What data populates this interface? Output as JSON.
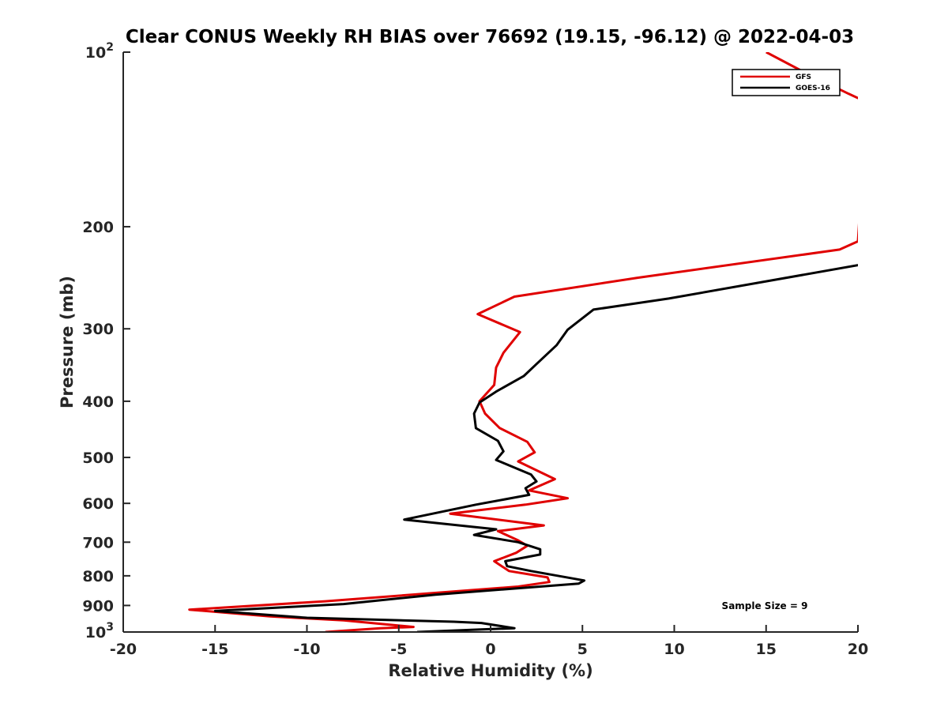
{
  "chart_data": {
    "type": "line",
    "title": "Clear CONUS Weekly RH BIAS over 76692 (19.15, -96.12) @ 2022-04-03",
    "xlabel": "Relative Humidity (%)",
    "ylabel": "Pressure (mb)",
    "xlim": [
      -20,
      20
    ],
    "ylim": [
      100,
      1000
    ],
    "yscale": "log",
    "yreversed": true,
    "x_ticks": [
      -20,
      -15,
      -10,
      -5,
      0,
      5,
      10,
      15,
      20
    ],
    "x_tick_labels": [
      "-20",
      "-15",
      "-10",
      "-5",
      "0",
      "5",
      "10",
      "15",
      "20"
    ],
    "y_ticks": [
      {
        "value": 100,
        "base": "10",
        "exp": "2"
      },
      {
        "value": 200,
        "label": "200"
      },
      {
        "value": 300,
        "label": "300"
      },
      {
        "value": 400,
        "label": "400"
      },
      {
        "value": 500,
        "label": "500"
      },
      {
        "value": 600,
        "label": "600"
      },
      {
        "value": 700,
        "label": "700"
      },
      {
        "value": 800,
        "label": "800"
      },
      {
        "value": 900,
        "label": "900"
      },
      {
        "value": 1000,
        "base": "10",
        "exp": "3"
      }
    ],
    "legend": {
      "location": "top-right",
      "entries": [
        "GFS",
        "GOES-16"
      ]
    },
    "annotation": "Sample Size = 9",
    "series": [
      {
        "name": "GFS",
        "color": "#e00000",
        "points": [
          [
            15,
            100
          ],
          [
            17,
            108
          ],
          [
            19.5,
            118
          ],
          [
            20,
            120
          ],
          [
            20.5,
            121
          ],
          [
            20,
            212
          ],
          [
            19,
            219
          ],
          [
            8,
            245
          ],
          [
            1.3,
            264
          ],
          [
            -0.7,
            283
          ],
          [
            1.6,
            304
          ],
          [
            0.7,
            330
          ],
          [
            0.3,
            350
          ],
          [
            0.2,
            375
          ],
          [
            -0.6,
            400
          ],
          [
            -0.3,
            420
          ],
          [
            0.5,
            445
          ],
          [
            2,
            470
          ],
          [
            2.4,
            490
          ],
          [
            1.5,
            508
          ],
          [
            3.5,
            545
          ],
          [
            2.1,
            570
          ],
          [
            4.2,
            588
          ],
          [
            1.9,
            603
          ],
          [
            -2.2,
            625
          ],
          [
            2.9,
            655
          ],
          [
            0.4,
            670
          ],
          [
            1.5,
            695
          ],
          [
            2,
            710
          ],
          [
            1.4,
            730
          ],
          [
            0.2,
            755
          ],
          [
            1,
            785
          ],
          [
            3.1,
            805
          ],
          [
            3.2,
            820
          ],
          [
            1.5,
            835
          ],
          [
            -9,
            885
          ],
          [
            -16.4,
            915
          ],
          [
            -12,
            940
          ],
          [
            -8,
            955
          ],
          [
            -5,
            975
          ],
          [
            -4.2,
            980
          ],
          [
            -6,
            985
          ],
          [
            -9,
            1000
          ]
        ]
      },
      {
        "name": "GOES-16",
        "color": "#000000",
        "points": [
          [
            21,
            230
          ],
          [
            9.7,
            266
          ],
          [
            5.6,
            278
          ],
          [
            4.2,
            301
          ],
          [
            3.6,
            320
          ],
          [
            2.5,
            345
          ],
          [
            1.8,
            362
          ],
          [
            0.3,
            385
          ],
          [
            -0.6,
            402
          ],
          [
            -0.9,
            420
          ],
          [
            -0.8,
            445
          ],
          [
            0.4,
            468
          ],
          [
            0.7,
            488
          ],
          [
            0.3,
            505
          ],
          [
            2.2,
            535
          ],
          [
            2.5,
            550
          ],
          [
            1.9,
            565
          ],
          [
            2.1,
            580
          ],
          [
            -0.8,
            603
          ],
          [
            -4.7,
            640
          ],
          [
            0.3,
            665
          ],
          [
            -0.9,
            680
          ],
          [
            1.5,
            700
          ],
          [
            2.7,
            720
          ],
          [
            2.7,
            735
          ],
          [
            0.8,
            755
          ],
          [
            0.9,
            770
          ],
          [
            2.2,
            785
          ],
          [
            5.1,
            815
          ],
          [
            4.8,
            825
          ],
          [
            -3,
            862
          ],
          [
            -8,
            895
          ],
          [
            -15,
            920
          ],
          [
            -10,
            945
          ],
          [
            -2,
            960
          ],
          [
            -0.5,
            965
          ],
          [
            1.3,
            985
          ],
          [
            -0.5,
            990
          ],
          [
            -4,
            1000
          ]
        ]
      }
    ]
  }
}
